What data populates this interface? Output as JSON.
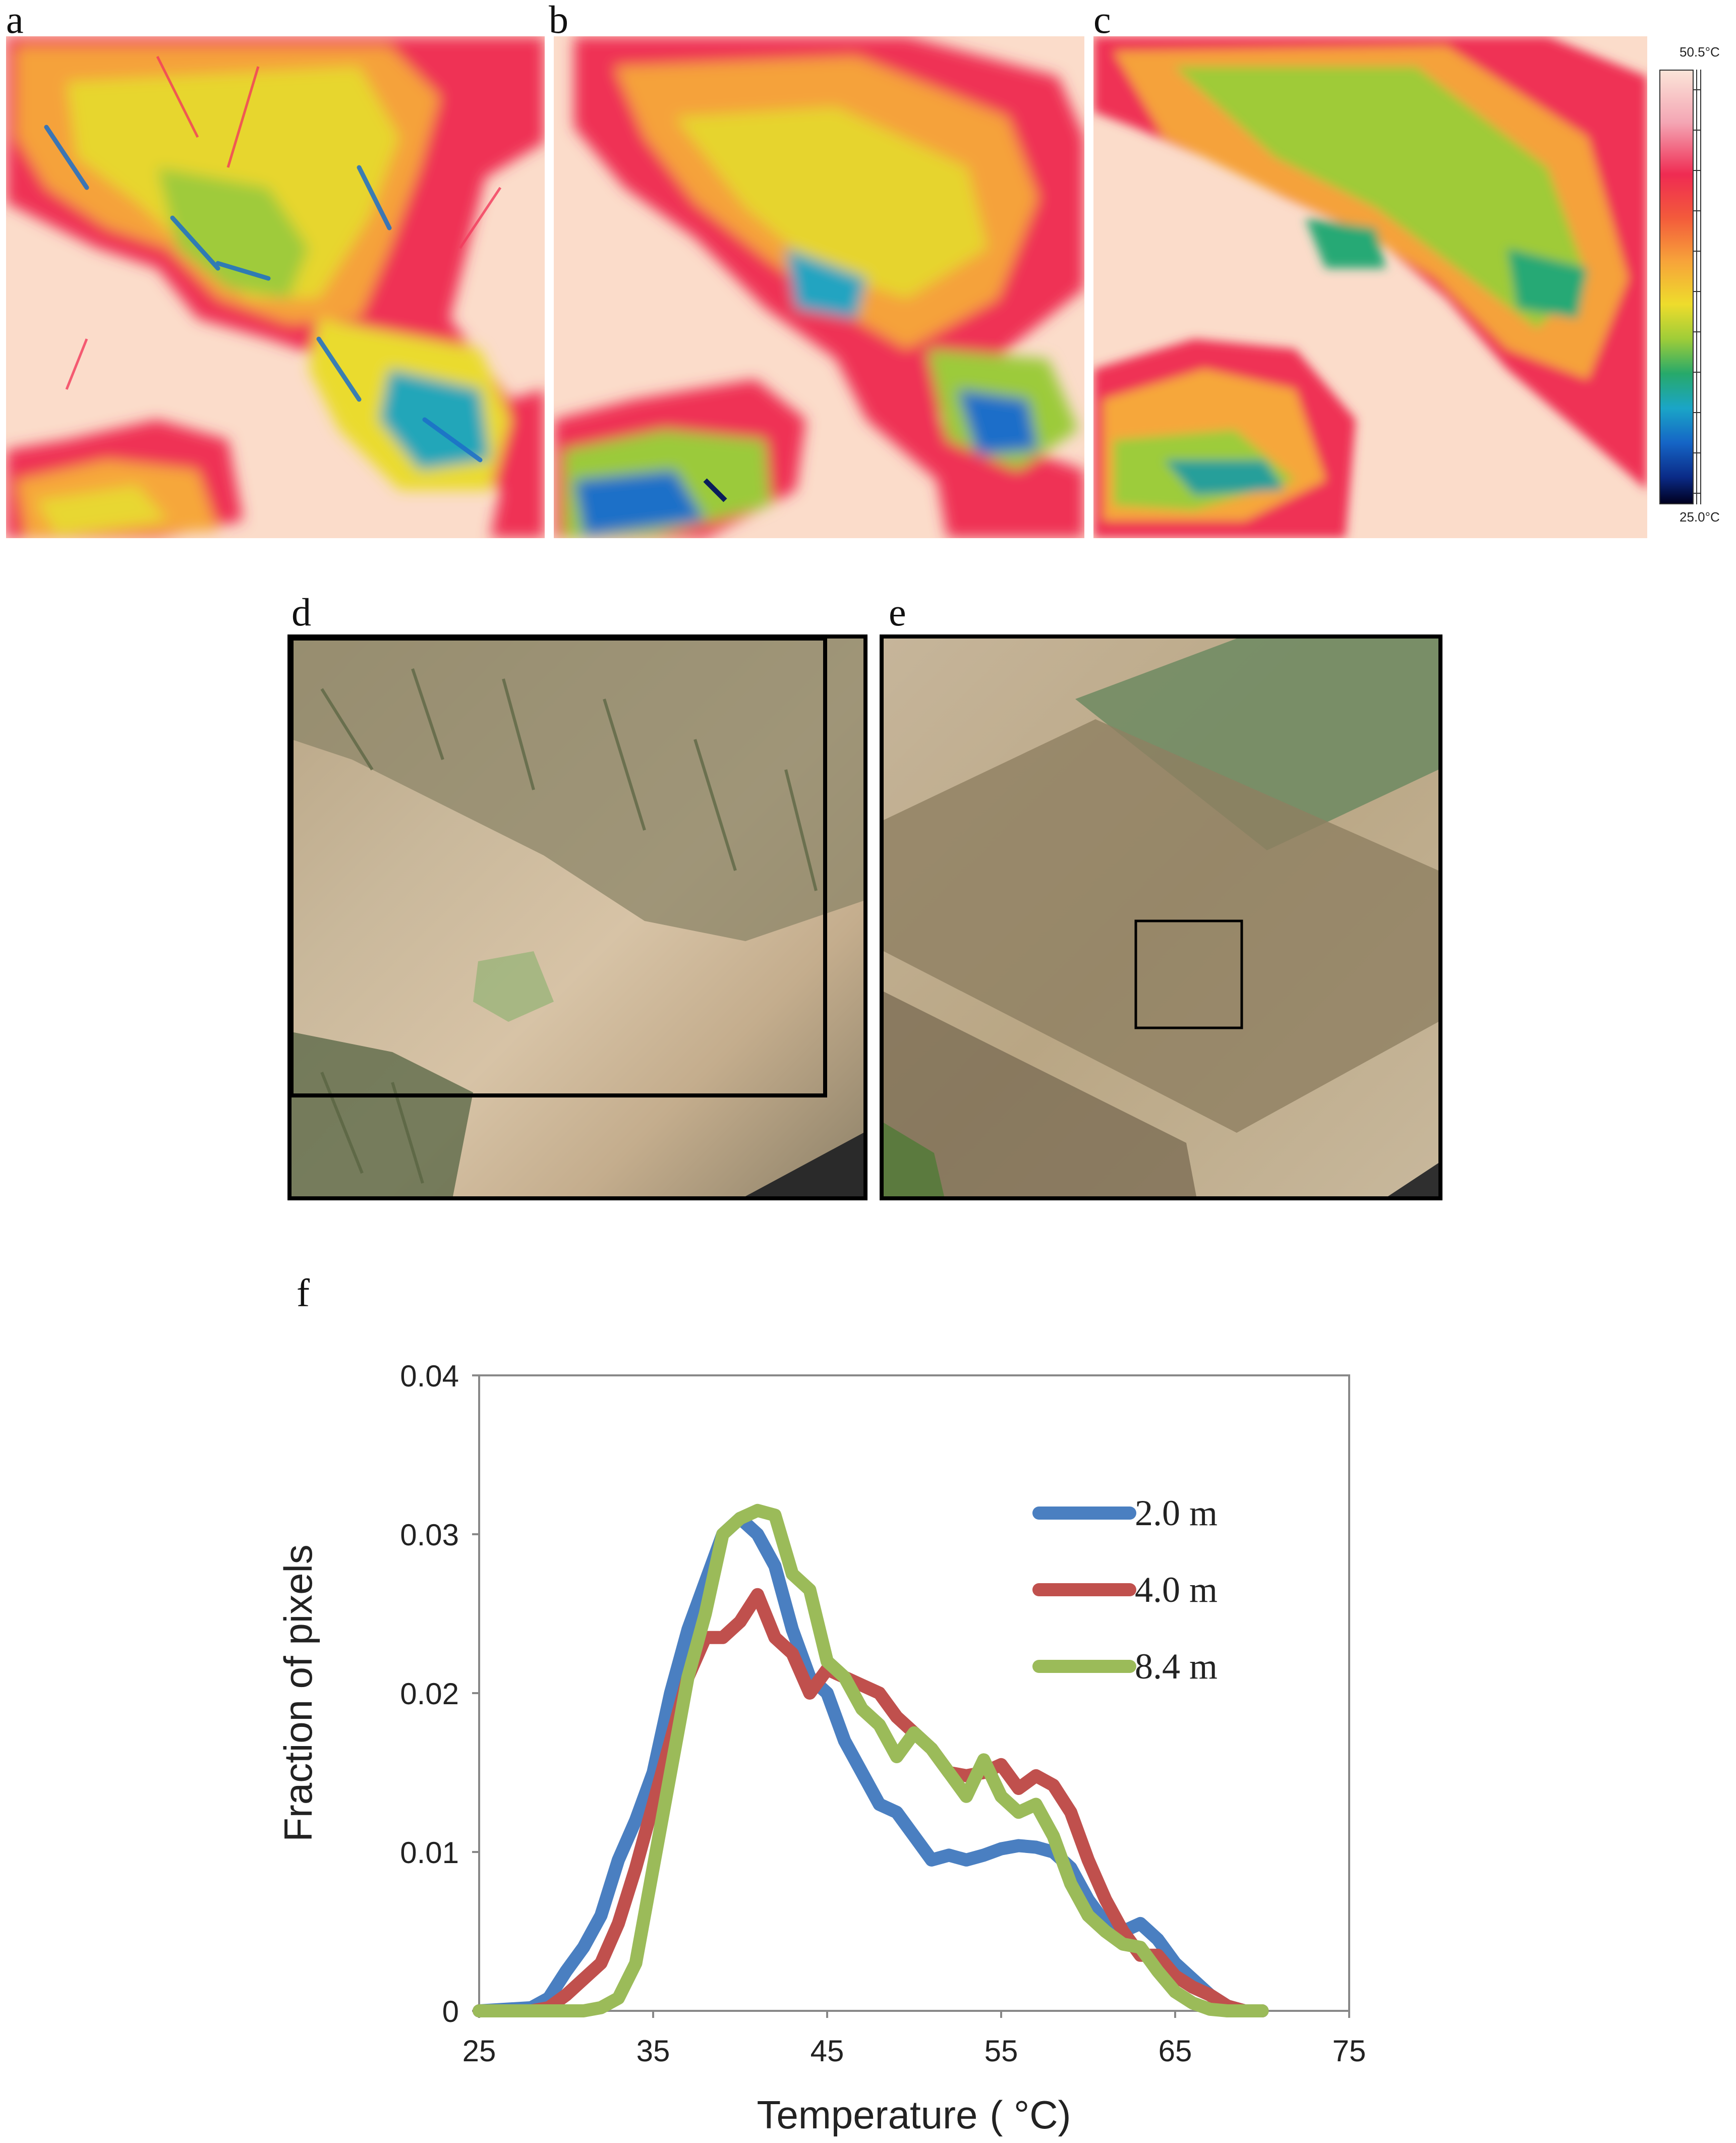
{
  "panels": {
    "a": "a",
    "b": "b",
    "c": "c",
    "d": "d",
    "e": "e",
    "f": "f"
  },
  "colorbar": {
    "max_label": "50.5°C",
    "min_label": "25.0°C",
    "max_value": 50.5,
    "min_value": 25.0,
    "colors": [
      "#fbe4d8",
      "#f4a6b4",
      "#ef2b52",
      "#f35a3b",
      "#f7a33a",
      "#eedc2c",
      "#9fcd38",
      "#27a96a",
      "#1aa5c7",
      "#1565c6",
      "#0a2a86",
      "#000020"
    ]
  },
  "chart_data": {
    "type": "line",
    "xlabel": "Temperature",
    "xlabel_unit": "(  °C)",
    "ylabel": "Fraction of pixels",
    "xlim": [
      25,
      75
    ],
    "ylim": [
      0,
      0.04
    ],
    "xticks": [
      "25",
      "35",
      "45",
      "55",
      "65",
      "75"
    ],
    "yticks": [
      "0",
      "0.01",
      "0.02",
      "0.03",
      "0.04"
    ],
    "legend_position": "upper-right",
    "series": [
      {
        "name": "2.0 m",
        "color": "#4a7fc1",
        "points": [
          [
            25,
            0
          ],
          [
            28,
            0.0002
          ],
          [
            29,
            0.0008
          ],
          [
            30,
            0.0025
          ],
          [
            31,
            0.004
          ],
          [
            32,
            0.006
          ],
          [
            33,
            0.0095
          ],
          [
            34,
            0.012
          ],
          [
            35,
            0.015
          ],
          [
            36,
            0.02
          ],
          [
            37,
            0.024
          ],
          [
            38,
            0.027
          ],
          [
            39,
            0.03
          ],
          [
            40,
            0.031
          ],
          [
            41,
            0.03
          ],
          [
            42,
            0.028
          ],
          [
            43,
            0.024
          ],
          [
            44,
            0.021
          ],
          [
            45,
            0.02
          ],
          [
            46,
            0.017
          ],
          [
            47,
            0.015
          ],
          [
            48,
            0.013
          ],
          [
            49,
            0.0125
          ],
          [
            50,
            0.011
          ],
          [
            51,
            0.0095
          ],
          [
            52,
            0.0098
          ],
          [
            53,
            0.0095
          ],
          [
            54,
            0.0098
          ],
          [
            55,
            0.0102
          ],
          [
            56,
            0.0104
          ],
          [
            57,
            0.0103
          ],
          [
            58,
            0.01
          ],
          [
            59,
            0.009
          ],
          [
            60,
            0.007
          ],
          [
            61,
            0.0055
          ],
          [
            62,
            0.005
          ],
          [
            63,
            0.0055
          ],
          [
            64,
            0.0045
          ],
          [
            65,
            0.003
          ],
          [
            66,
            0.002
          ],
          [
            67,
            0.001
          ],
          [
            68,
            0.0003
          ],
          [
            69,
            0
          ],
          [
            70,
            0
          ]
        ]
      },
      {
        "name": "4.0 m",
        "color": "#c0504d",
        "points": [
          [
            25,
            0
          ],
          [
            28,
            0
          ],
          [
            29,
            0.0002
          ],
          [
            30,
            0.001
          ],
          [
            31,
            0.002
          ],
          [
            32,
            0.003
          ],
          [
            33,
            0.0055
          ],
          [
            34,
            0.009
          ],
          [
            35,
            0.013
          ],
          [
            36,
            0.017
          ],
          [
            37,
            0.021
          ],
          [
            38,
            0.0235
          ],
          [
            39,
            0.0235
          ],
          [
            40,
            0.0245
          ],
          [
            41,
            0.0262
          ],
          [
            42,
            0.0235
          ],
          [
            43,
            0.0225
          ],
          [
            44,
            0.02
          ],
          [
            45,
            0.0215
          ],
          [
            46,
            0.021
          ],
          [
            47,
            0.0205
          ],
          [
            48,
            0.02
          ],
          [
            49,
            0.0185
          ],
          [
            50,
            0.0175
          ],
          [
            51,
            0.0165
          ],
          [
            52,
            0.015
          ],
          [
            53,
            0.0148
          ],
          [
            54,
            0.015
          ],
          [
            55,
            0.0155
          ],
          [
            56,
            0.014
          ],
          [
            57,
            0.0148
          ],
          [
            58,
            0.0142
          ],
          [
            59,
            0.0125
          ],
          [
            60,
            0.0095
          ],
          [
            61,
            0.007
          ],
          [
            62,
            0.005
          ],
          [
            63,
            0.0035
          ],
          [
            64,
            0.0035
          ],
          [
            65,
            0.0022
          ],
          [
            66,
            0.0015
          ],
          [
            67,
            0.001
          ],
          [
            68,
            0.0003
          ],
          [
            69,
            0
          ],
          [
            70,
            0
          ]
        ]
      },
      {
        "name": "8.4 m",
        "color": "#9bbb59",
        "points": [
          [
            25,
            0
          ],
          [
            31,
            0
          ],
          [
            32,
            0.0002
          ],
          [
            33,
            0.0008
          ],
          [
            34,
            0.003
          ],
          [
            35,
            0.009
          ],
          [
            36,
            0.015
          ],
          [
            37,
            0.021
          ],
          [
            38,
            0.025
          ],
          [
            39,
            0.03
          ],
          [
            40,
            0.031
          ],
          [
            41,
            0.0315
          ],
          [
            42,
            0.0312
          ],
          [
            43,
            0.0275
          ],
          [
            44,
            0.0265
          ],
          [
            45,
            0.022
          ],
          [
            46,
            0.021
          ],
          [
            47,
            0.019
          ],
          [
            48,
            0.018
          ],
          [
            49,
            0.016
          ],
          [
            50,
            0.0175
          ],
          [
            51,
            0.0165
          ],
          [
            52,
            0.015
          ],
          [
            53,
            0.0135
          ],
          [
            54,
            0.0158
          ],
          [
            55,
            0.0135
          ],
          [
            56,
            0.0125
          ],
          [
            57,
            0.013
          ],
          [
            58,
            0.011
          ],
          [
            59,
            0.008
          ],
          [
            60,
            0.006
          ],
          [
            61,
            0.005
          ],
          [
            62,
            0.0042
          ],
          [
            63,
            0.004
          ],
          [
            64,
            0.0025
          ],
          [
            65,
            0.0012
          ],
          [
            66,
            0.0005
          ],
          [
            67,
            0.0001
          ],
          [
            68,
            0
          ],
          [
            70,
            0
          ]
        ]
      }
    ]
  }
}
